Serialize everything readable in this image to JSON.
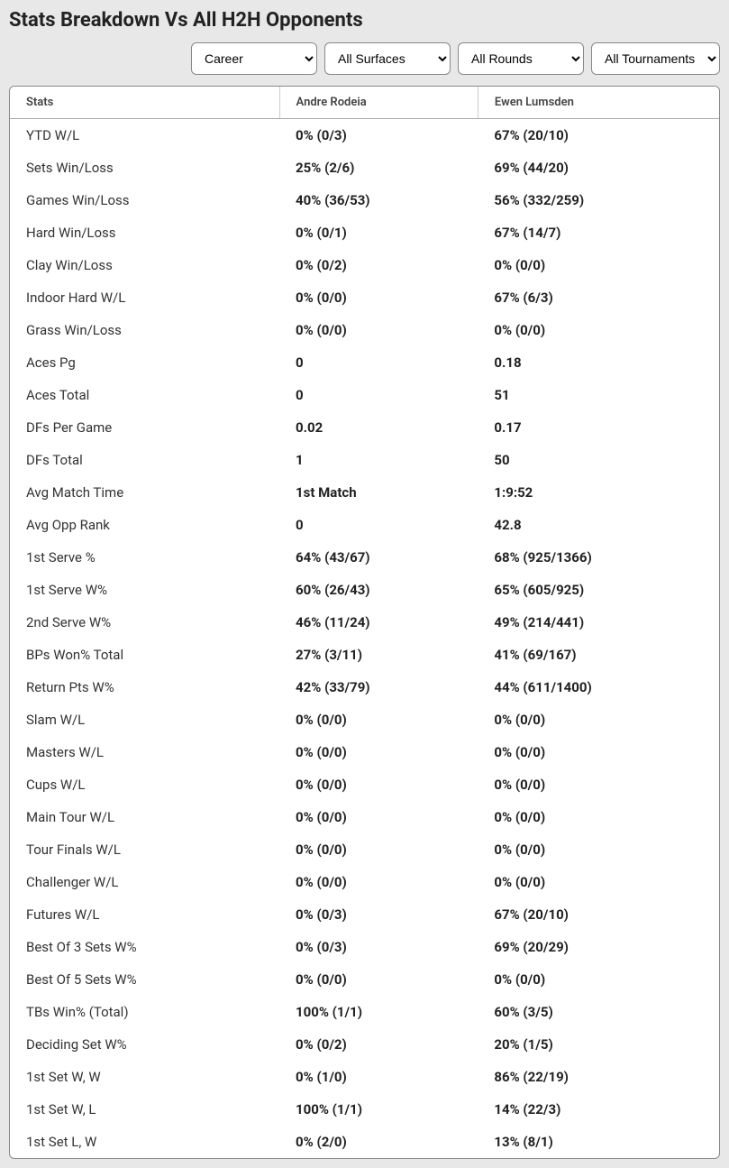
{
  "title": "Stats Breakdown Vs All H2H Opponents",
  "filters": {
    "period": "Career",
    "surface": "All Surfaces",
    "round": "All Rounds",
    "tournament": "All Tournaments"
  },
  "columns": [
    "Stats",
    "Andre Rodeia",
    "Ewen Lumsden"
  ],
  "rows": [
    [
      "YTD W/L",
      "0% (0/3)",
      "67% (20/10)"
    ],
    [
      "Sets Win/Loss",
      "25% (2/6)",
      "69% (44/20)"
    ],
    [
      "Games Win/Loss",
      "40% (36/53)",
      "56% (332/259)"
    ],
    [
      "Hard Win/Loss",
      "0% (0/1)",
      "67% (14/7)"
    ],
    [
      "Clay Win/Loss",
      "0% (0/2)",
      "0% (0/0)"
    ],
    [
      "Indoor Hard W/L",
      "0% (0/0)",
      "67% (6/3)"
    ],
    [
      "Grass Win/Loss",
      "0% (0/0)",
      "0% (0/0)"
    ],
    [
      "Aces Pg",
      "0",
      "0.18"
    ],
    [
      "Aces Total",
      "0",
      "51"
    ],
    [
      "DFs Per Game",
      "0.02",
      "0.17"
    ],
    [
      "DFs Total",
      "1",
      "50"
    ],
    [
      "Avg Match Time",
      "1st Match",
      "1:9:52"
    ],
    [
      "Avg Opp Rank",
      "0",
      "42.8"
    ],
    [
      "1st Serve %",
      "64% (43/67)",
      "68% (925/1366)"
    ],
    [
      "1st Serve W%",
      "60% (26/43)",
      "65% (605/925)"
    ],
    [
      "2nd Serve W%",
      "46% (11/24)",
      "49% (214/441)"
    ],
    [
      "BPs Won% Total",
      "27% (3/11)",
      "41% (69/167)"
    ],
    [
      "Return Pts W%",
      "42% (33/79)",
      "44% (611/1400)"
    ],
    [
      "Slam W/L",
      "0% (0/0)",
      "0% (0/0)"
    ],
    [
      "Masters W/L",
      "0% (0/0)",
      "0% (0/0)"
    ],
    [
      "Cups W/L",
      "0% (0/0)",
      "0% (0/0)"
    ],
    [
      "Main Tour W/L",
      "0% (0/0)",
      "0% (0/0)"
    ],
    [
      "Tour Finals W/L",
      "0% (0/0)",
      "0% (0/0)"
    ],
    [
      "Challenger W/L",
      "0% (0/0)",
      "0% (0/0)"
    ],
    [
      "Futures W/L",
      "0% (0/3)",
      "67% (20/10)"
    ],
    [
      "Best Of 3 Sets W%",
      "0% (0/3)",
      "69% (20/29)"
    ],
    [
      "Best Of 5 Sets W%",
      "0% (0/0)",
      "0% (0/0)"
    ],
    [
      "TBs Win% (Total)",
      "100% (1/1)",
      "60% (3/5)"
    ],
    [
      "Deciding Set W%",
      "0% (0/2)",
      "20% (1/5)"
    ],
    [
      "1st Set W, W",
      "0% (1/0)",
      "86% (22/19)"
    ],
    [
      "1st Set W, L",
      "100% (1/1)",
      "14% (22/3)"
    ],
    [
      "1st Set L, W",
      "0% (2/0)",
      "13% (8/1)"
    ]
  ],
  "style": {
    "background_color": "#e8e8e8",
    "table_bg": "#ffffff",
    "border_color": "#888888",
    "header_text_color": "#444444",
    "body_text_color": "#222222"
  }
}
